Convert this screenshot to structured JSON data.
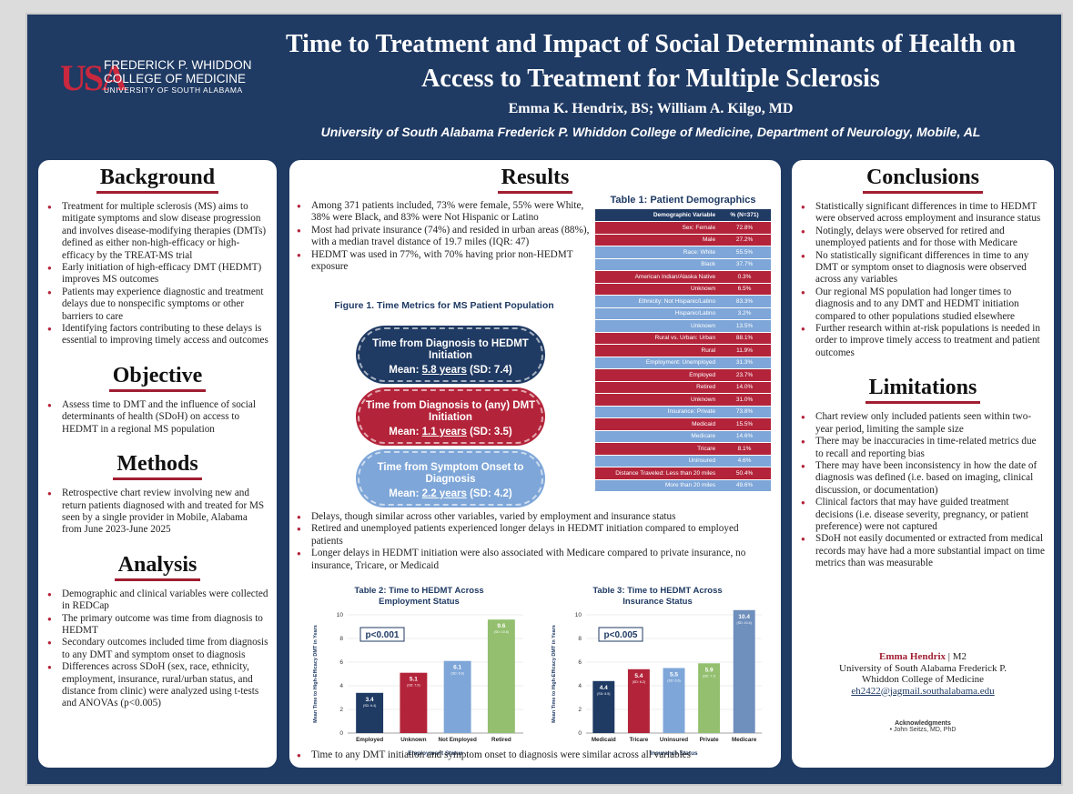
{
  "header": {
    "logo_mark": "USA",
    "logo_line1": "FREDERICK P. WHIDDON",
    "logo_line2": "COLLEGE OF MEDICINE",
    "logo_line3": "UNIVERSITY OF SOUTH ALABAMA",
    "title": "Time to Treatment and Impact of Social Determinants of Health on Access to Treatment for Multiple Sclerosis",
    "authors": "Emma K. Hendrix, BS; William A. Kilgo, MD",
    "affiliation": "University of South Alabama Frederick P. Whiddon College of Medicine, Department of Neurology, Mobile, AL"
  },
  "background": {
    "title": "Background",
    "bullets": [
      "Treatment for multiple sclerosis (MS) aims to mitigate symptoms and slow disease progression and involves disease-modifying therapies (DMTs) defined as either non-high-efficacy or high-efficacy by the TREAT-MS trial",
      "Early initiation of high-efficacy DMT (HEDMT) improves MS outcomes",
      "Patients may experience diagnostic and treatment delays due to nonspecific symptoms or other barriers to care",
      "Identifying factors contributing to these delays is essential to improving timely access and outcomes"
    ]
  },
  "objective": {
    "title": "Objective",
    "bullets": [
      "Assess time to DMT and the influence of social determinants of health (SDoH) on access to HEDMT in a regional MS population"
    ]
  },
  "methods": {
    "title": "Methods",
    "bullets": [
      "Retrospective chart review involving new and return patients diagnosed with and treated for MS seen by a single provider in Mobile, Alabama from June 2023-June 2025"
    ]
  },
  "analysis": {
    "title": "Analysis",
    "bullets": [
      "Demographic and clinical variables were collected in REDCap",
      "The primary outcome was time from diagnosis to HEDMT",
      "Secondary outcomes included time from diagnosis to any DMT and symptom onset to diagnosis",
      "Differences across SDoH (sex, race, ethnicity, employment, insurance, rural/urban status, and distance from clinic) were analyzed using t-tests and ANOVAs (p<0.005)"
    ]
  },
  "results": {
    "title": "Results",
    "bullets_top": [
      "Among 371 patients included, 73% were female, 55% were White, 38% were Black, and 83% were Not Hispanic or Latino",
      "Most had private insurance (74%) and resided in urban areas (88%), with a median travel distance of 19.7 miles (IQR: 47)",
      "HEDMT was used in 77%, with 70% having prior non-HEDMT exposure"
    ],
    "figure1_title": "Figure 1. Time Metrics for MS Patient Population",
    "pills": [
      {
        "label": "Time from Diagnosis to HEDMT Initiation",
        "mean_prefix": "Mean: ",
        "mean_value": "5.8 years",
        "sd": " (SD: 7.4)",
        "color": "#1f3a63"
      },
      {
        "label": "Time from Diagnosis to (any) DMT Initiation",
        "mean_prefix": "Mean: ",
        "mean_value": "1.1 years",
        "sd": " (SD: 3.5)",
        "color": "#b3243a"
      },
      {
        "label": "Time from Symptom Onset to Diagnosis",
        "mean_prefix": "Mean: ",
        "mean_value": "2.2 years",
        "sd": " (SD: 4.2)",
        "color": "#7ea6d8"
      }
    ],
    "bullets_mid": [
      "Delays, though similar across other variables, varied by employment and insurance status",
      "Retired and unemployed patients experienced longer delays in HEDMT initiation compared to employed patients",
      "Longer delays in HEDMT initiation were also associated with Medicare compared to private insurance, no insurance, Tricare, or Medicaid"
    ],
    "bullets_bottom": [
      "Time to any DMT initiation and symptom onset to diagnosis were similar across all variables"
    ]
  },
  "table1": {
    "title": "Table 1: Patient Demographics",
    "header": [
      "Demographic Variable",
      "% (N=371)"
    ],
    "rows": [
      {
        "label": "Sex: Female",
        "value": "72.8%",
        "color": "#b3243a"
      },
      {
        "label": "Male",
        "value": "27.2%",
        "color": "#b3243a"
      },
      {
        "label": "Race: White",
        "value": "55.5%",
        "color": "#7ea6d8"
      },
      {
        "label": "Black",
        "value": "37.7%",
        "color": "#7ea6d8"
      },
      {
        "label": "American Indian/Alaska Native",
        "value": "0.3%",
        "color": "#b3243a"
      },
      {
        "label": "Unknown",
        "value": "6.5%",
        "color": "#b3243a"
      },
      {
        "label": "Ethnicity: Not Hispanic/Latino",
        "value": "83.3%",
        "color": "#7ea6d8"
      },
      {
        "label": "Hispanic/Latino",
        "value": "3.2%",
        "color": "#7ea6d8"
      },
      {
        "label": "Unknown",
        "value": "13.5%",
        "color": "#7ea6d8"
      },
      {
        "label": "Rural vs. Urban: Urban",
        "value": "88.1%",
        "color": "#b3243a"
      },
      {
        "label": "Rural",
        "value": "11.9%",
        "color": "#b3243a"
      },
      {
        "label": "Employment: Unemployed",
        "value": "31.3%",
        "color": "#7ea6d8"
      },
      {
        "label": "Employed",
        "value": "23.7%",
        "color": "#b3243a"
      },
      {
        "label": "Retired",
        "value": "14.0%",
        "color": "#b3243a"
      },
      {
        "label": "Unknown",
        "value": "31.0%",
        "color": "#b3243a"
      },
      {
        "label": "Insurance: Private",
        "value": "73.8%",
        "color": "#7ea6d8"
      },
      {
        "label": "Medicaid",
        "value": "15.5%",
        "color": "#b3243a"
      },
      {
        "label": "Medicare",
        "value": "14.6%",
        "color": "#7ea6d8"
      },
      {
        "label": "Tricare",
        "value": "8.1%",
        "color": "#b3243a"
      },
      {
        "label": "Uninsured",
        "value": "4.6%",
        "color": "#7ea6d8"
      },
      {
        "label": "Distance Traveled: Less than 20 miles",
        "value": "50.4%",
        "color": "#b3243a"
      },
      {
        "label": "More than 20 miles",
        "value": "49.6%",
        "color": "#7ea6d8"
      }
    ]
  },
  "chart_data": [
    {
      "type": "bar",
      "title": "Table 2: Time to HEDMT Across Employment Status",
      "title_line1": "Table 2: Time to HEDMT Across",
      "title_line2": "Employment Status",
      "xlabel": "Employment Status",
      "ylabel": "Mean Time to High-Efficacy DMT in Years",
      "ylim": [
        0,
        10
      ],
      "yticks": [
        0,
        2,
        4,
        6,
        8,
        10
      ],
      "annotation": "p<0.001",
      "categories": [
        "Employed",
        "Unknown",
        "Not Employed",
        "Retired"
      ],
      "values": [
        3.4,
        5.1,
        6.1,
        9.6
      ],
      "sd_labels": [
        "(SD: 6.4)",
        "(SD: 7.0)",
        "(SD: 6.6)",
        "(SD: 10.6)"
      ],
      "colors": [
        "#1f3a63",
        "#b3243a",
        "#7ea6d8",
        "#93bf6f"
      ]
    },
    {
      "type": "bar",
      "title": "Table 3: Time to HEDMT Across Insurance Status",
      "title_line1": "Table 3: Time to HEDMT Across",
      "title_line2": "Insurance Status",
      "xlabel": "Insurance Status",
      "ylabel": "Mean Time to High-Efficacy DMT in Years",
      "ylim": [
        0,
        10
      ],
      "yticks": [
        0,
        2,
        4,
        6,
        8,
        10
      ],
      "annotation": "p<0.005",
      "categories": [
        "Medicaid",
        "Tricare",
        "Uninsured",
        "Private",
        "Medicare"
      ],
      "values": [
        4.4,
        5.4,
        5.5,
        5.9,
        10.4
      ],
      "sd_labels": [
        "(SD: 6.5)",
        "(SD: 6.2)",
        "(SD: 6.6)",
        "(SD: 7.7)",
        "(SD: 10.4)"
      ],
      "colors": [
        "#1f3a63",
        "#b3243a",
        "#7ea6d8",
        "#93bf6f",
        "#6f8fbd"
      ]
    }
  ],
  "conclusions": {
    "title": "Conclusions",
    "bullets": [
      "Statistically significant differences in time to HEDMT were observed across employment and insurance status",
      "Notingly, delays were observed for retired and unemployed patients and for those with Medicare",
      "No statistically significant differences in time to any DMT or symptom onset to diagnosis were observed across any variables",
      "Our regional MS population had longer times to diagnosis and to any DMT and HEDMT initiation compared to other populations studied elsewhere",
      "Further research within at-risk populations is needed in order to improve timely access to treatment and patient outcomes"
    ]
  },
  "limitations": {
    "title": "Limitations",
    "bullets": [
      "Chart review only included patients seen within two-year period, limiting the sample size",
      "There may be inaccuracies in time-related metrics due to recall and reporting bias",
      "There may have been inconsistency in how the date of diagnosis was defined (i.e. based on imaging, clinical discussion, or documentation)",
      "Clinical factors that may have guided treatment decisions (i.e. disease severity, pregnancy, or patient preference) were not captured",
      "SDoH not easily documented or extracted from medical records may have had a more substantial impact on time metrics than was measurable"
    ]
  },
  "contact": {
    "name": "Emma Hendrix",
    "role": " | M2",
    "line1": "University of South Alabama Frederick P.",
    "line2": "Whiddon College of Medicine",
    "email": "eh2422@jagmail.southalabama.edu"
  },
  "acknowledgments": {
    "title": "Acknowledgments",
    "item": "•   John Seitzs, MD, PhD"
  }
}
